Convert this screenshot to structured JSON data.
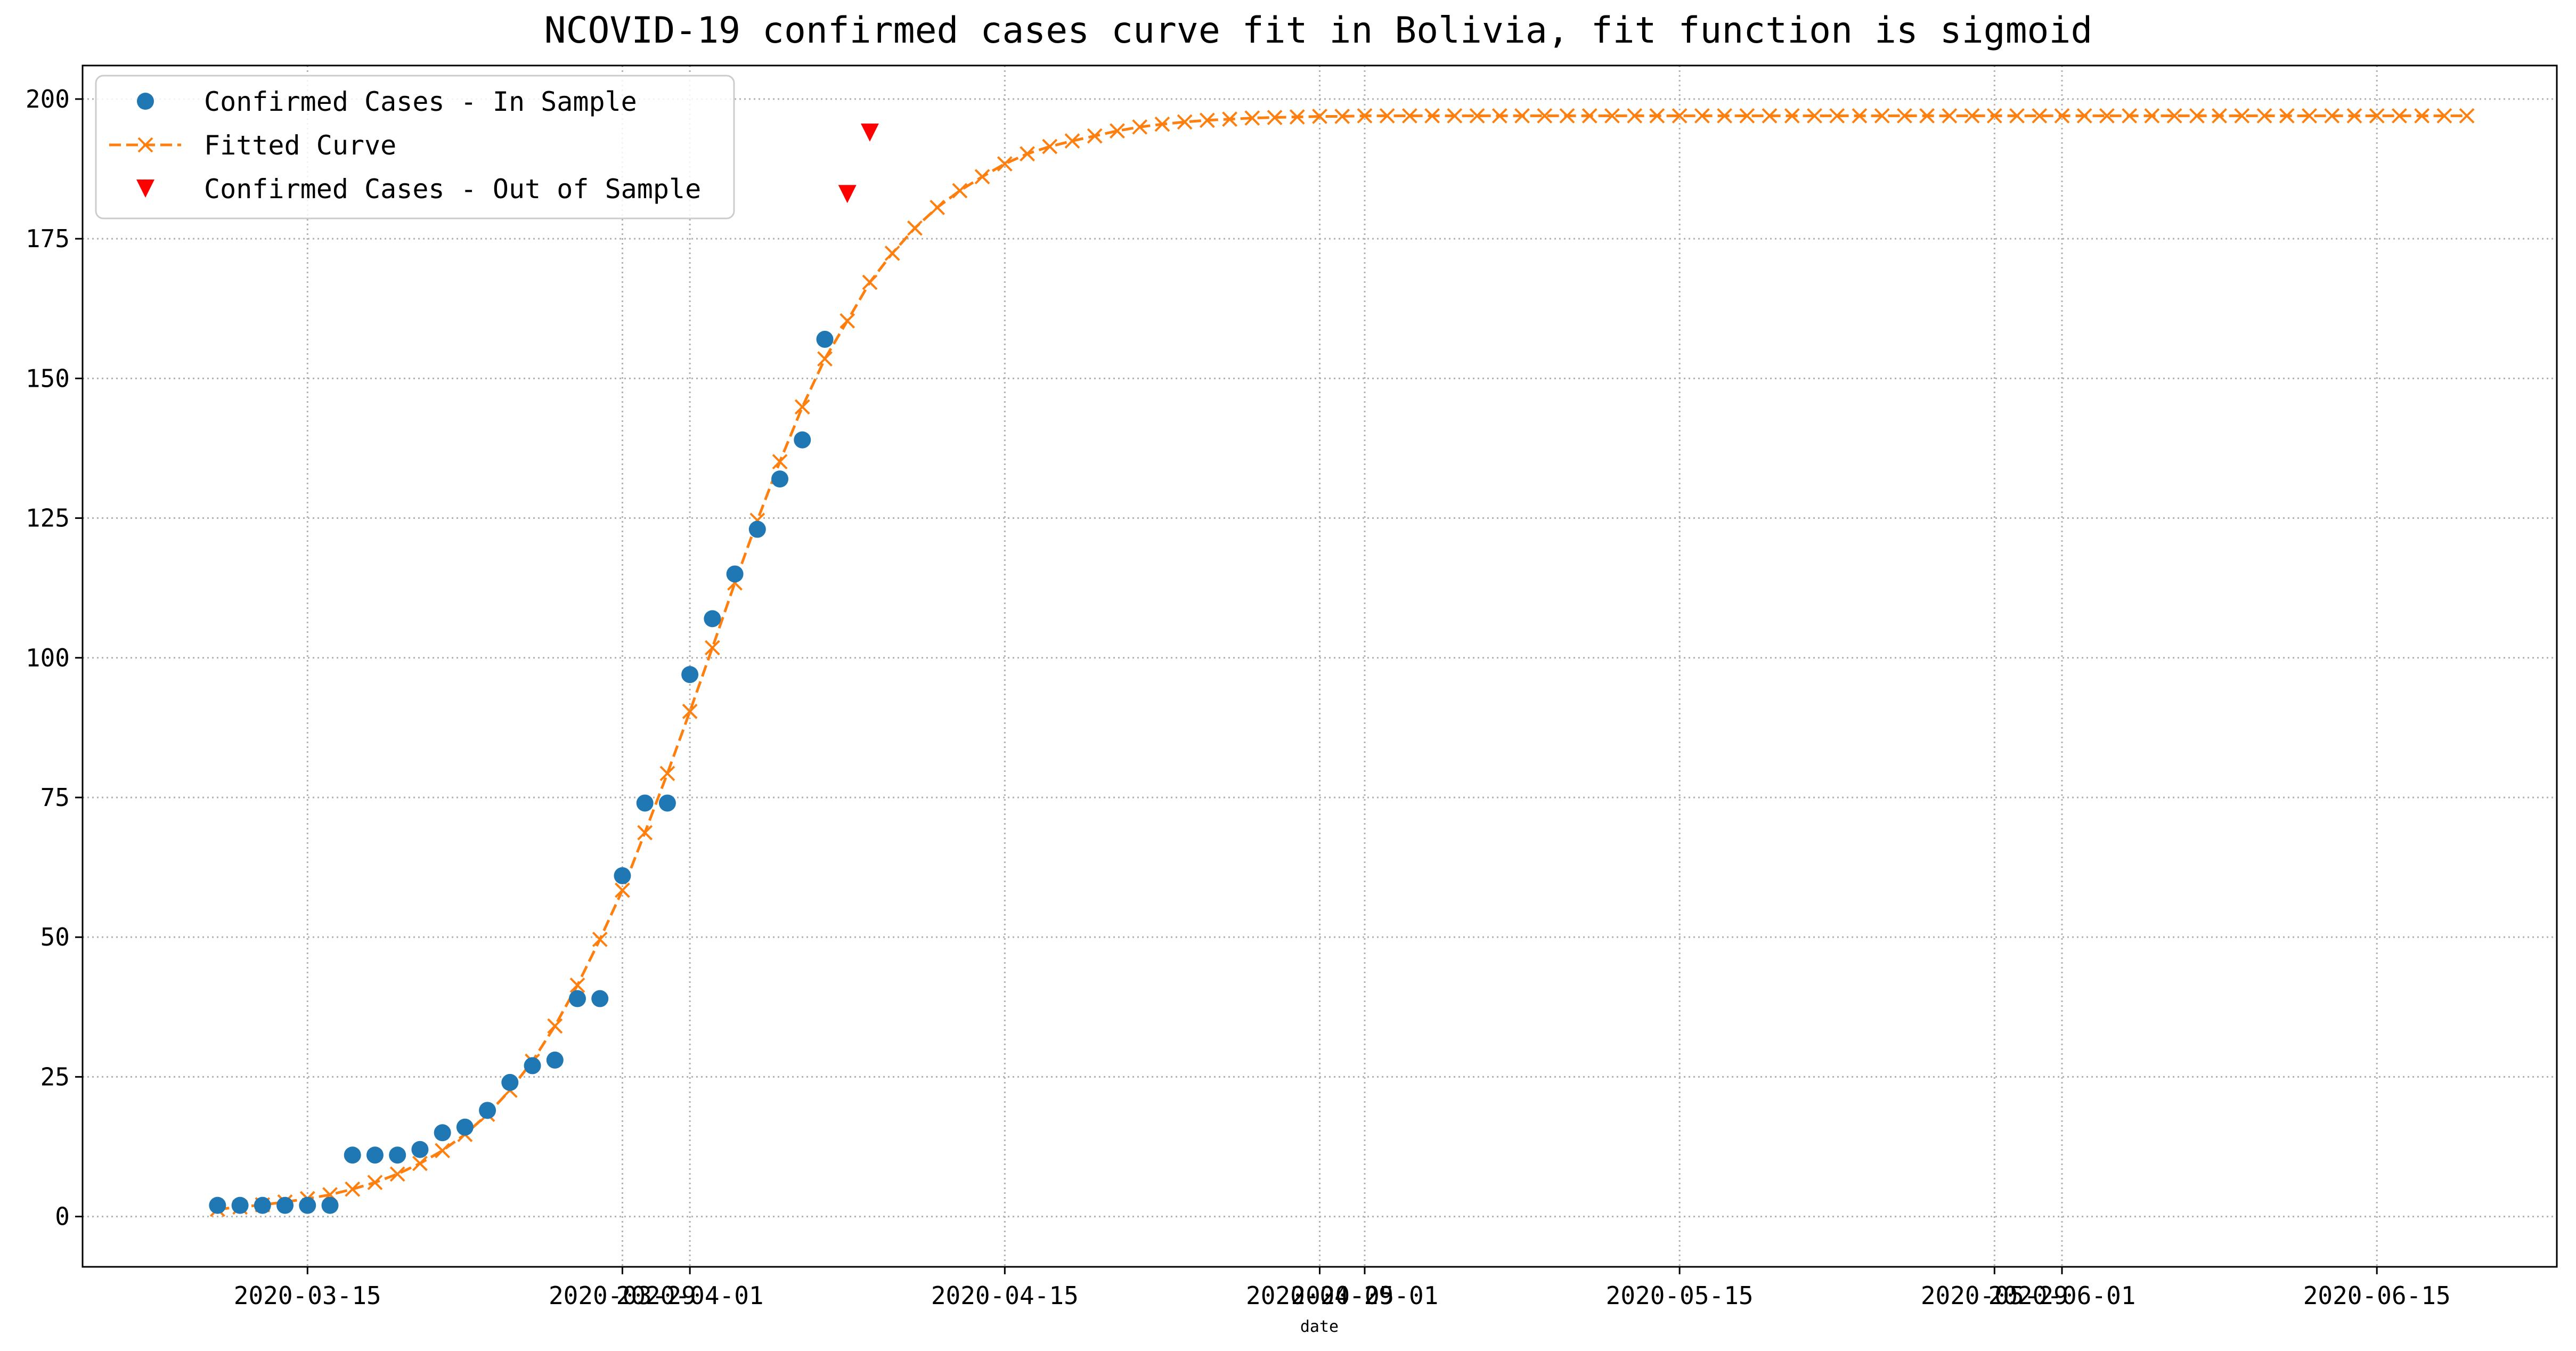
{
  "chart_data": {
    "type": "line",
    "title": "NCOVID-19 confirmed cases curve fit in Bolivia, fit function is sigmoid",
    "xlabel": "date",
    "ylabel": "",
    "grid": true,
    "legend_position": "top-left",
    "ylim": [
      -9,
      206
    ],
    "xlim": [
      "2020-03-05",
      "2020-06-23"
    ],
    "y_ticks": [
      0,
      25,
      50,
      75,
      100,
      125,
      150,
      175,
      200
    ],
    "x_ticks": [
      {
        "date": "2020-03-15",
        "label": "2020-03-15"
      },
      {
        "date": "2020-03-29",
        "label": "2020-03-29"
      },
      {
        "date": "2020-04-01",
        "label": "2020-04-01"
      },
      {
        "date": "2020-04-15",
        "label": "2020-04-15"
      },
      {
        "date": "2020-04-29",
        "label": "2020-04-29"
      },
      {
        "date": "2020-05-01",
        "label": "2020-05-01"
      },
      {
        "date": "2020-05-15",
        "label": "2020-05-15"
      },
      {
        "date": "2020-05-29",
        "label": "2020-05-29"
      },
      {
        "date": "2020-06-01",
        "label": "2020-06-01"
      },
      {
        "date": "2020-06-15",
        "label": "2020-06-15"
      }
    ],
    "series": [
      {
        "name": "Confirmed Cases - In Sample",
        "marker": "circle",
        "color": "#1f77b4",
        "x": [
          "2020-03-11",
          "2020-03-12",
          "2020-03-13",
          "2020-03-14",
          "2020-03-15",
          "2020-03-16",
          "2020-03-17",
          "2020-03-18",
          "2020-03-19",
          "2020-03-20",
          "2020-03-21",
          "2020-03-22",
          "2020-03-23",
          "2020-03-24",
          "2020-03-25",
          "2020-03-26",
          "2020-03-27",
          "2020-03-28",
          "2020-03-29",
          "2020-03-30",
          "2020-03-31",
          "2020-04-01",
          "2020-04-02",
          "2020-04-03",
          "2020-04-04",
          "2020-04-05",
          "2020-04-06",
          "2020-04-07"
        ],
        "y": [
          2,
          2,
          2,
          2,
          2,
          2,
          11,
          11,
          11,
          12,
          15,
          16,
          19,
          24,
          27,
          28,
          39,
          39,
          61,
          74,
          74,
          97,
          107,
          115,
          123,
          132,
          139,
          157
        ]
      },
      {
        "name": "Fitted Curve",
        "marker": "x",
        "line": "dashed",
        "color": "#ff7f0e",
        "x_start": "2020-03-11",
        "x_step_days": 1,
        "y": [
          1.3,
          1.7,
          2.1,
          2.6,
          3.2,
          3.9,
          4.9,
          6.1,
          7.6,
          9.5,
          11.8,
          14.7,
          18.3,
          22.6,
          27.8,
          34.1,
          41.4,
          49.6,
          58.4,
          68.7,
          79.3,
          90.4,
          101.8,
          113.4,
          124.6,
          135.1,
          144.9,
          153.5,
          160.3,
          167.2,
          172.4,
          176.9,
          180.6,
          183.6,
          186.1,
          188.4,
          190.2,
          191.5,
          192.5,
          193.4,
          194.3,
          195.0,
          195.5,
          195.9,
          196.2,
          196.4,
          196.6,
          196.7,
          196.8,
          196.9,
          196.9,
          197,
          197,
          197,
          197,
          197,
          197,
          197,
          197,
          197,
          197,
          197,
          197,
          197,
          197,
          197,
          197,
          197,
          197,
          197,
          197,
          197,
          197,
          197,
          197,
          197,
          197,
          197,
          197,
          197,
          197,
          197,
          197,
          197,
          197,
          197,
          197,
          197,
          197,
          197,
          197,
          197,
          197,
          197,
          197,
          197,
          197,
          197,
          197,
          197,
          197
        ]
      },
      {
        "name": "Confirmed Cases - Out of Sample",
        "marker": "triangle-down",
        "color": "#ff0000",
        "x": [
          "2020-04-08",
          "2020-04-09"
        ],
        "y": [
          183,
          194
        ]
      }
    ]
  }
}
